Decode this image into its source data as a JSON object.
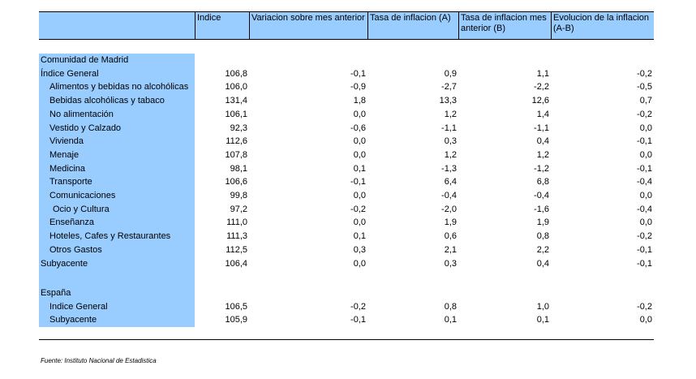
{
  "headers": {
    "indice": "Indice",
    "variacion": "Variacion sobre mes anterior",
    "tasa_a": "Tasa de inflacion (A)",
    "tasa_b": "Tasa de inflacion mes anterior (B)",
    "evolucion": "Evolucion de la inflacion (A-B)"
  },
  "sections": [
    {
      "title": "Comunidad de Madrid",
      "rows": [
        {
          "label": "Índice General",
          "indent": 0,
          "indice": "106,8",
          "variacion": "-0,1",
          "tasa_a": "0,9",
          "tasa_b": "1,1",
          "evolucion": "-0,2"
        },
        {
          "label": "Alimentos y bebidas no alcohólicas",
          "indent": 1,
          "indice": "106,0",
          "variacion": "-0,9",
          "tasa_a": "-2,7",
          "tasa_b": "-2,2",
          "evolucion": "-0,5"
        },
        {
          "label": "Bebidas alcohólicas y tabaco",
          "indent": 1,
          "indice": "131,4",
          "variacion": "1,8",
          "tasa_a": "13,3",
          "tasa_b": "12,6",
          "evolucion": "0,7"
        },
        {
          "label": "No alimentación",
          "indent": 1,
          "indice": "106,1",
          "variacion": "0,0",
          "tasa_a": "1,2",
          "tasa_b": "1,4",
          "evolucion": "-0,2"
        },
        {
          "label": "Vestido y Calzado",
          "indent": 1,
          "indice": "92,3",
          "variacion": "-0,6",
          "tasa_a": "-1,1",
          "tasa_b": "-1,1",
          "evolucion": "0,0"
        },
        {
          "label": "Vivienda",
          "indent": 1,
          "indice": "112,6",
          "variacion": "0,0",
          "tasa_a": "0,3",
          "tasa_b": "0,4",
          "evolucion": "-0,1"
        },
        {
          "label": "Menaje",
          "indent": 1,
          "indice": "107,8",
          "variacion": "0,0",
          "tasa_a": "1,2",
          "tasa_b": "1,2",
          "evolucion": "0,0"
        },
        {
          "label": "Medicina",
          "indent": 1,
          "indice": "98,1",
          "variacion": "0,1",
          "tasa_a": "-1,3",
          "tasa_b": "-1,2",
          "evolucion": "-0,1"
        },
        {
          "label": "Transporte",
          "indent": 1,
          "indice": "106,6",
          "variacion": "-0,1",
          "tasa_a": "6,4",
          "tasa_b": "6,8",
          "evolucion": "-0,4"
        },
        {
          "label": "Comunicaciones",
          "indent": 1,
          "indice": "99,8",
          "variacion": "0,0",
          "tasa_a": "-0,4",
          "tasa_b": "-0,4",
          "evolucion": "0,0"
        },
        {
          "label": "Ocio y Cultura",
          "indent": 2,
          "indice": "97,2",
          "variacion": "-0,2",
          "tasa_a": "-2,0",
          "tasa_b": "-1,6",
          "evolucion": "-0,4"
        },
        {
          "label": "Enseñanza",
          "indent": 1,
          "indice": "111,0",
          "variacion": "0,0",
          "tasa_a": "1,9",
          "tasa_b": "1,9",
          "evolucion": "0,0"
        },
        {
          "label": "Hoteles, Cafes y Restaurantes",
          "indent": 1,
          "indice": "111,3",
          "variacion": "0,1",
          "tasa_a": "0,6",
          "tasa_b": "0,8",
          "evolucion": "-0,2"
        },
        {
          "label": "Otros Gastos",
          "indent": 1,
          "indice": "112,5",
          "variacion": "0,3",
          "tasa_a": "2,1",
          "tasa_b": "2,2",
          "evolucion": "-0,1"
        },
        {
          "label": "Subyacente",
          "indent": 0,
          "indice": "106,4",
          "variacion": "0,0",
          "tasa_a": "0,3",
          "tasa_b": "0,4",
          "evolucion": "-0,1"
        }
      ]
    },
    {
      "title": "España",
      "rows": [
        {
          "label": "Indice General",
          "indent": 1,
          "indice": "106,5",
          "variacion": "-0,2",
          "tasa_a": "0,8",
          "tasa_b": "1,0",
          "evolucion": "-0,2"
        },
        {
          "label": "Subyacente",
          "indent": 1,
          "indice": "105,9",
          "variacion": "-0,1",
          "tasa_a": "0,1",
          "tasa_b": "0,1",
          "evolucion": "0,0"
        }
      ]
    }
  ],
  "source": "Fuente: Instituto Nacional de Estadistica",
  "colors": {
    "band": "#99ccff",
    "text": "#000000"
  }
}
